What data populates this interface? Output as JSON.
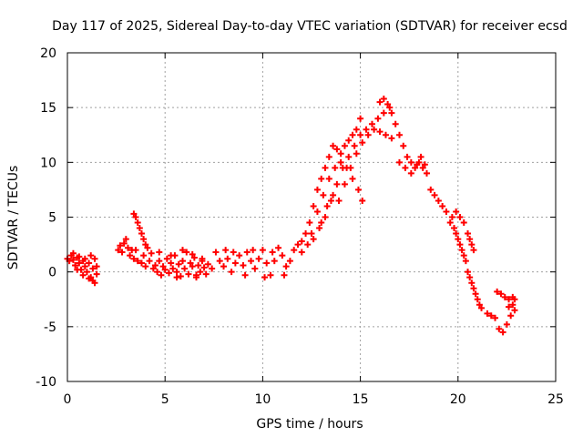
{
  "chart_data": {
    "type": "scatter",
    "title": "Day 117 of 2025, Sidereal Day-to-day VTEC variation (SDTVAR) for receiver ecsd",
    "xlabel": "GPS time / hours",
    "ylabel": "SDTVAR / TECUs",
    "xlim": [
      0,
      25
    ],
    "ylim": [
      -10,
      20
    ],
    "x_ticks": [
      0,
      5,
      10,
      15,
      20,
      25
    ],
    "y_ticks": [
      -10,
      -5,
      0,
      5,
      10,
      15,
      20
    ],
    "x_tick_labels": [
      "0",
      "5",
      "10",
      "15",
      "20",
      "25"
    ],
    "y_tick_labels": [
      "-10",
      "-5",
      "0",
      "5",
      "10",
      "15",
      "20"
    ],
    "grid": true,
    "marker": "plus",
    "series_color": "#ff0000",
    "series": [
      {
        "name": "SDTVAR",
        "points": [
          [
            0.0,
            1.2
          ],
          [
            0.1,
            1.0
          ],
          [
            0.2,
            1.5
          ],
          [
            0.3,
            1.1
          ],
          [
            0.4,
            0.6
          ],
          [
            0.5,
            1.3
          ],
          [
            0.6,
            0.8
          ],
          [
            0.7,
            0.2
          ],
          [
            0.8,
            1.0
          ],
          [
            0.9,
            0.5
          ],
          [
            1.0,
            0.0
          ],
          [
            1.1,
            0.8
          ],
          [
            1.2,
            -0.5
          ],
          [
            1.3,
            0.3
          ],
          [
            1.4,
            -1.0
          ],
          [
            1.5,
            -0.2
          ],
          [
            0.3,
            1.7
          ],
          [
            0.6,
            1.4
          ],
          [
            0.9,
            1.2
          ],
          [
            1.2,
            1.5
          ],
          [
            1.4,
            1.2
          ],
          [
            0.5,
            0.2
          ],
          [
            0.8,
            -0.3
          ],
          [
            1.1,
            -0.6
          ],
          [
            1.3,
            -0.8
          ],
          [
            1.5,
            0.5
          ],
          [
            2.6,
            2.0
          ],
          [
            2.7,
            2.4
          ],
          [
            2.8,
            1.8
          ],
          [
            2.9,
            2.6
          ],
          [
            3.0,
            3.0
          ],
          [
            3.1,
            2.2
          ],
          [
            3.2,
            1.5
          ],
          [
            3.3,
            2.0
          ],
          [
            3.4,
            5.3
          ],
          [
            3.5,
            5.0
          ],
          [
            3.6,
            4.5
          ],
          [
            3.7,
            4.0
          ],
          [
            3.8,
            3.5
          ],
          [
            3.9,
            3.0
          ],
          [
            4.0,
            2.5
          ],
          [
            4.1,
            2.2
          ],
          [
            3.4,
            1.2
          ],
          [
            3.6,
            1.0
          ],
          [
            3.8,
            0.8
          ],
          [
            4.0,
            0.5
          ],
          [
            4.2,
            1.0
          ],
          [
            4.4,
            0.3
          ],
          [
            3.5,
            2.0
          ],
          [
            3.9,
            1.5
          ],
          [
            4.3,
            1.7
          ],
          [
            4.5,
            0.6
          ],
          [
            4.6,
            0.0
          ],
          [
            4.7,
            1.0
          ],
          [
            4.8,
            -0.3
          ],
          [
            4.9,
            0.5
          ],
          [
            5.0,
            0.2
          ],
          [
            5.1,
            1.2
          ],
          [
            5.2,
            -0.1
          ],
          [
            5.3,
            0.8
          ],
          [
            5.4,
            0.3
          ],
          [
            5.5,
            1.5
          ],
          [
            5.6,
            0.0
          ],
          [
            5.7,
            0.7
          ],
          [
            5.8,
            -0.4
          ],
          [
            5.9,
            1.0
          ],
          [
            6.0,
            0.3
          ],
          [
            6.1,
            1.8
          ],
          [
            6.2,
            -0.2
          ],
          [
            6.3,
            0.8
          ],
          [
            6.4,
            0.5
          ],
          [
            6.5,
            1.3
          ],
          [
            6.6,
            -0.3
          ],
          [
            6.7,
            0.6
          ],
          [
            6.8,
            0.0
          ],
          [
            6.9,
            1.0
          ],
          [
            7.0,
            0.4
          ],
          [
            7.1,
            -0.2
          ],
          [
            7.2,
            0.7
          ],
          [
            4.7,
            1.8
          ],
          [
            5.3,
            1.5
          ],
          [
            5.9,
            2.0
          ],
          [
            6.4,
            1.6
          ],
          [
            6.9,
            1.2
          ],
          [
            5.6,
            -0.5
          ],
          [
            6.6,
            -0.5
          ],
          [
            7.8,
            1.0
          ],
          [
            8.0,
            0.5
          ],
          [
            8.2,
            1.2
          ],
          [
            8.4,
            0.0
          ],
          [
            8.6,
            0.8
          ],
          [
            8.8,
            1.5
          ],
          [
            9.0,
            0.6
          ],
          [
            9.2,
            1.8
          ],
          [
            9.4,
            1.0
          ],
          [
            9.6,
            0.3
          ],
          [
            9.8,
            1.2
          ],
          [
            10.0,
            2.0
          ],
          [
            10.2,
            0.8
          ],
          [
            10.4,
            -0.3
          ],
          [
            10.6,
            1.0
          ],
          [
            10.8,
            2.2
          ],
          [
            11.0,
            1.5
          ],
          [
            11.2,
            0.5
          ],
          [
            11.4,
            1.0
          ],
          [
            11.6,
            2.0
          ],
          [
            11.8,
            2.5
          ],
          [
            12.0,
            1.8
          ],
          [
            8.1,
            2.0
          ],
          [
            9.1,
            -0.3
          ],
          [
            10.1,
            -0.5
          ],
          [
            11.1,
            -0.3
          ],
          [
            7.6,
            1.8
          ],
          [
            7.4,
            0.3
          ],
          [
            8.5,
            1.8
          ],
          [
            9.5,
            2.0
          ],
          [
            10.5,
            1.8
          ],
          [
            12.0,
            2.8
          ],
          [
            12.2,
            3.5
          ],
          [
            12.4,
            4.5
          ],
          [
            12.6,
            6.0
          ],
          [
            12.8,
            7.5
          ],
          [
            13.0,
            8.5
          ],
          [
            13.2,
            9.5
          ],
          [
            13.4,
            10.5
          ],
          [
            13.6,
            11.5
          ],
          [
            13.8,
            11.2
          ],
          [
            14.0,
            10.8
          ],
          [
            14.2,
            11.5
          ],
          [
            14.4,
            12.0
          ],
          [
            14.6,
            12.5
          ],
          [
            14.8,
            13.0
          ],
          [
            15.0,
            14.0
          ],
          [
            12.3,
            2.5
          ],
          [
            12.6,
            3.0
          ],
          [
            12.9,
            4.0
          ],
          [
            13.2,
            5.0
          ],
          [
            13.5,
            6.5
          ],
          [
            13.8,
            8.0
          ],
          [
            14.1,
            9.5
          ],
          [
            14.4,
            10.5
          ],
          [
            14.7,
            11.5
          ],
          [
            15.0,
            12.5
          ],
          [
            15.3,
            13.0
          ],
          [
            15.6,
            13.5
          ],
          [
            15.9,
            14.0
          ],
          [
            16.2,
            14.5
          ],
          [
            16.5,
            15.0
          ],
          [
            12.5,
            3.5
          ],
          [
            12.8,
            5.5
          ],
          [
            13.1,
            7.0
          ],
          [
            13.4,
            8.5
          ],
          [
            13.7,
            9.5
          ],
          [
            14.0,
            10.0
          ],
          [
            14.3,
            9.5
          ],
          [
            14.6,
            8.5
          ],
          [
            14.9,
            7.5
          ],
          [
            15.1,
            6.5
          ],
          [
            13.0,
            4.5
          ],
          [
            13.3,
            6.0
          ],
          [
            13.6,
            7.0
          ],
          [
            13.9,
            6.5
          ],
          [
            14.2,
            8.0
          ],
          [
            14.5,
            9.5
          ],
          [
            14.8,
            10.8
          ],
          [
            15.1,
            11.8
          ],
          [
            15.4,
            12.5
          ],
          [
            15.7,
            13.0
          ],
          [
            16.0,
            12.8
          ],
          [
            16.3,
            12.5
          ],
          [
            16.6,
            12.2
          ],
          [
            16.0,
            15.5
          ],
          [
            16.2,
            15.8
          ],
          [
            16.4,
            15.3
          ],
          [
            16.6,
            14.5
          ],
          [
            16.8,
            13.5
          ],
          [
            17.0,
            12.5
          ],
          [
            17.2,
            11.5
          ],
          [
            17.4,
            10.5
          ],
          [
            17.6,
            10.0
          ],
          [
            17.8,
            9.5
          ],
          [
            18.0,
            10.0
          ],
          [
            18.2,
            9.5
          ],
          [
            18.4,
            9.0
          ],
          [
            17.0,
            10.0
          ],
          [
            17.3,
            9.5
          ],
          [
            17.6,
            9.0
          ],
          [
            17.9,
            9.8
          ],
          [
            18.1,
            10.5
          ],
          [
            18.3,
            9.8
          ],
          [
            18.6,
            7.5
          ],
          [
            18.8,
            7.0
          ],
          [
            19.0,
            6.5
          ],
          [
            19.2,
            6.0
          ],
          [
            19.4,
            5.5
          ],
          [
            19.6,
            4.5
          ],
          [
            19.7,
            5.0
          ],
          [
            19.8,
            4.0
          ],
          [
            19.9,
            3.5
          ],
          [
            20.0,
            3.0
          ],
          [
            20.1,
            2.5
          ],
          [
            20.2,
            2.0
          ],
          [
            20.3,
            1.5
          ],
          [
            20.4,
            1.0
          ],
          [
            20.5,
            0.0
          ],
          [
            20.6,
            -0.5
          ],
          [
            20.7,
            -1.0
          ],
          [
            20.8,
            -1.5
          ],
          [
            20.9,
            -2.0
          ],
          [
            21.0,
            -2.5
          ],
          [
            21.1,
            -3.0
          ],
          [
            21.2,
            -3.3
          ],
          [
            19.9,
            5.5
          ],
          [
            20.1,
            5.0
          ],
          [
            20.3,
            4.5
          ],
          [
            20.5,
            3.5
          ],
          [
            20.6,
            3.0
          ],
          [
            20.7,
            2.5
          ],
          [
            20.8,
            2.0
          ],
          [
            21.5,
            -3.8
          ],
          [
            21.7,
            -4.0
          ],
          [
            21.9,
            -4.2
          ],
          [
            22.1,
            -5.2
          ],
          [
            22.3,
            -5.5
          ],
          [
            22.5,
            -4.8
          ],
          [
            22.7,
            -4.0
          ],
          [
            22.9,
            -3.5
          ],
          [
            22.0,
            -1.8
          ],
          [
            22.2,
            -2.0
          ],
          [
            22.4,
            -2.3
          ],
          [
            22.6,
            -2.5
          ],
          [
            22.8,
            -2.3
          ],
          [
            22.9,
            -2.5
          ],
          [
            22.6,
            -3.2
          ],
          [
            22.8,
            -3.0
          ]
        ]
      }
    ]
  }
}
